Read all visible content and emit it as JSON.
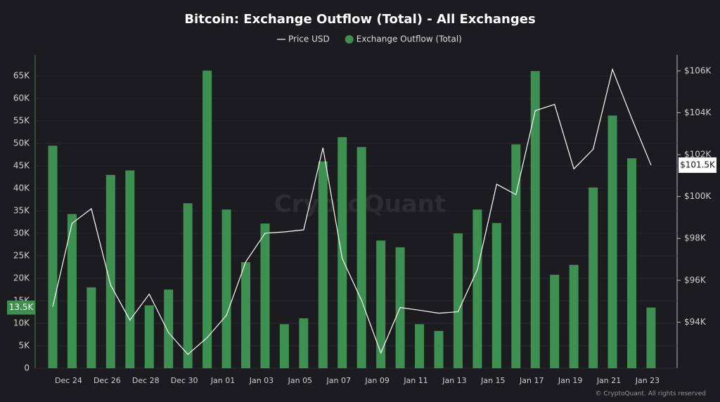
{
  "chart_data": {
    "type": "bar",
    "title": "Bitcoin: Exchange Outflow (Total) - All Exchanges",
    "watermark": "CryptoQuant",
    "footer": "© CryptoQuant. All rights reserved",
    "categories": [
      null,
      "Dec 24",
      null,
      "Dec 26",
      null,
      "Dec 28",
      null,
      "Dec 30",
      null,
      "Jan 01",
      null,
      "Jan 03",
      null,
      "Jan 05",
      null,
      "Jan 07",
      null,
      "Jan 09",
      null,
      "Jan 11",
      null,
      "Jan 13",
      null,
      "Jan 15",
      null,
      "Jan 17",
      null,
      "Jan 19",
      null,
      "Jan 21",
      null,
      "Jan 23"
    ],
    "series": [
      {
        "name": "Price USD",
        "type": "line",
        "axis": "y2",
        "color": "#ffffff",
        "values": [
          94.74,
          98.72,
          99.42,
          95.77,
          94.1,
          95.34,
          93.5,
          92.46,
          93.26,
          94.33,
          96.88,
          98.25,
          98.31,
          98.41,
          102.33,
          97.04,
          95.04,
          92.53,
          94.7,
          94.57,
          94.43,
          94.5,
          96.51,
          100.59,
          100.09,
          104.1,
          104.4,
          101.32,
          102.26,
          106.07,
          103.73,
          101.5
        ],
        "value_labels": [
          null,
          null,
          null,
          null,
          null,
          null,
          null,
          null,
          null,
          null,
          null,
          null,
          null,
          null,
          null,
          null,
          null,
          null,
          null,
          null,
          null,
          null,
          null,
          null,
          null,
          null,
          null,
          null,
          null,
          null,
          null,
          "$101.5K"
        ]
      },
      {
        "name": "Exchange Outflow (Total)",
        "type": "bar",
        "color": "#3d9150",
        "values": [
          49500,
          34300,
          18000,
          43000,
          44000,
          14000,
          17500,
          36700,
          66200,
          35300,
          23600,
          32200,
          9800,
          11100,
          46000,
          51400,
          49200,
          28400,
          26900,
          9800,
          8300,
          30000,
          35300,
          32300,
          49800,
          66100,
          20800,
          23000,
          40200,
          56200,
          46700,
          13500
        ],
        "value_labels": [
          null,
          null,
          null,
          null,
          null,
          null,
          null,
          null,
          null,
          null,
          null,
          null,
          null,
          null,
          null,
          null,
          null,
          null,
          null,
          null,
          null,
          null,
          null,
          null,
          null,
          null,
          null,
          null,
          null,
          null,
          null,
          "13.5K"
        ]
      }
    ],
    "ylim": [
      0,
      69400
    ],
    "yticks": [
      0,
      {
        "value": 5000,
        "label": "5K"
      },
      {
        "value": 10000,
        "label": "10K"
      },
      {
        "value": 15000,
        "label": "15K"
      },
      {
        "value": 20000,
        "label": "20K"
      },
      {
        "value": 25000,
        "label": "25K"
      },
      {
        "value": 30000,
        "label": "30K"
      },
      {
        "value": 35000,
        "label": "35K"
      },
      {
        "value": 40000,
        "label": "40K"
      },
      {
        "value": 45000,
        "label": "45K"
      },
      {
        "value": 50000,
        "label": "50K"
      },
      {
        "value": 55000,
        "label": "55K"
      },
      {
        "value": 60000,
        "label": "60K"
      },
      {
        "value": 65000,
        "label": "65K"
      }
    ],
    "y2lim": [
      91.8,
      106.7
    ],
    "y2ticks": [
      {
        "value": 94,
        "label": "$94K"
      },
      {
        "value": 96,
        "label": "$96K"
      },
      {
        "value": 98,
        "label": "$98K"
      },
      {
        "value": 100,
        "label": "$100K"
      },
      {
        "value": 102,
        "label": "$102K"
      },
      {
        "value": 104,
        "label": "$104K"
      },
      {
        "value": 106,
        "label": "$106K"
      }
    ],
    "grid": true
  }
}
